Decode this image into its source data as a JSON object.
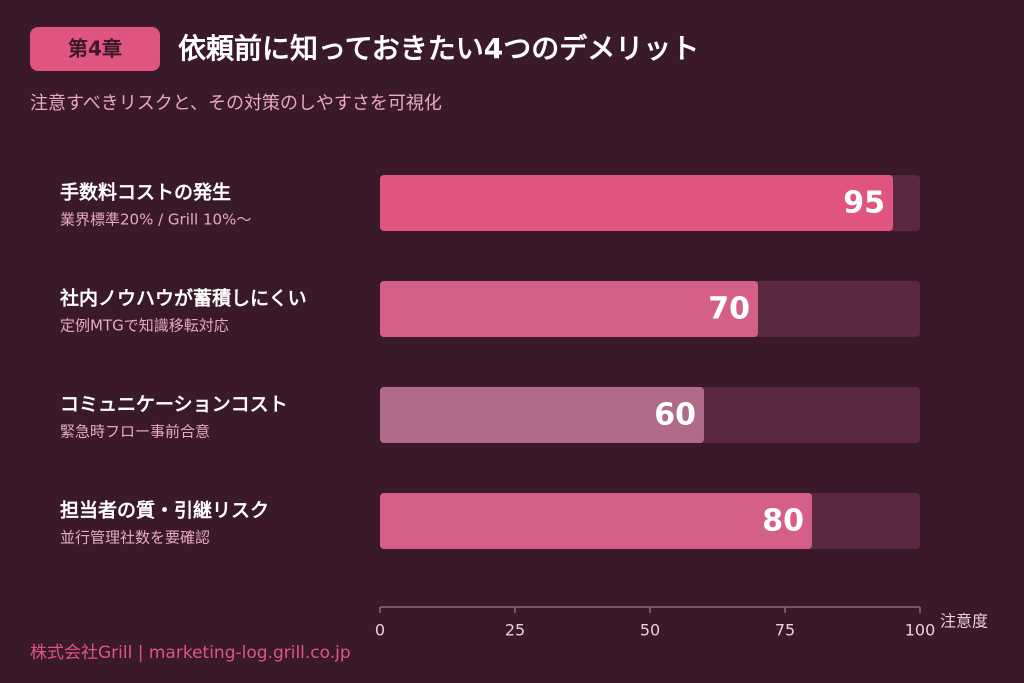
{
  "chart_data": {
    "type": "bar",
    "orientation": "horizontal",
    "badge": "第4章",
    "title": "依頼前に知っておきたい4つのデメリット",
    "subtitle": "注意すべきリスクと、その対策のしやすさを可視化",
    "categories": [
      "手数料コストの発生",
      "社内ノウハウが蓄積しにくい",
      "コミュニケーションコスト",
      "担当者の質・引継リスク"
    ],
    "sublabels": [
      "業界標準20% / Grill 10%〜",
      "定例MTGで知識移転対応",
      "緊急時フロー事前合意",
      "並行管理社数を要確認"
    ],
    "values": [
      95,
      70,
      60,
      80
    ],
    "colors": [
      "#e0557f",
      "#d4608a",
      "#b06a8a",
      "#d4608a"
    ],
    "track_color": "#5a2840",
    "xlim": [
      0,
      100
    ],
    "xticks": [
      0,
      25,
      50,
      75,
      100
    ],
    "xlabel": "注意度",
    "footer": "株式会社Grill | marketing-log.grill.co.jp"
  }
}
